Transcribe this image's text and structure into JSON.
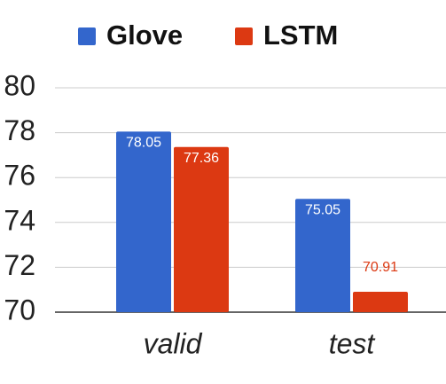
{
  "chart_data": {
    "type": "bar",
    "categories": [
      "valid",
      "test"
    ],
    "series": [
      {
        "name": "Glove",
        "color": "#3366cc",
        "values": [
          78.05,
          75.05
        ]
      },
      {
        "name": "LSTM",
        "color": "#dc3912",
        "values": [
          77.36,
          70.91
        ]
      }
    ],
    "ylim": [
      70,
      80
    ],
    "yticks": [
      70,
      72,
      74,
      76,
      78,
      80
    ],
    "grid": true,
    "legend": "top"
  }
}
